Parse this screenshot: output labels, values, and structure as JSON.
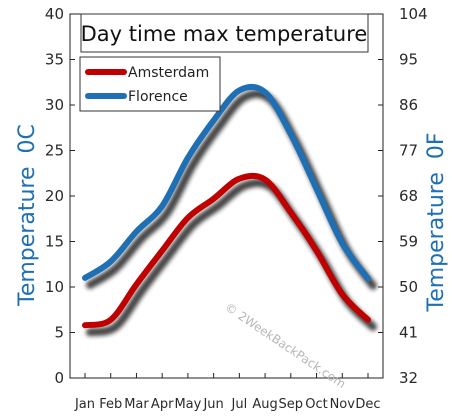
{
  "chart_data": {
    "type": "line",
    "title": "Day time max temperature",
    "categories": [
      "Jan",
      "Feb",
      "Mar",
      "Apr",
      "May",
      "Jun",
      "Jul",
      "Aug",
      "Sep",
      "Oct",
      "Nov",
      "Dec"
    ],
    "series": [
      {
        "name": "Amsterdam",
        "color": "#c00000",
        "values": [
          5.8,
          6.4,
          10.3,
          14.0,
          17.6,
          19.7,
          21.9,
          21.8,
          18.2,
          14.0,
          9.2,
          6.4
        ]
      },
      {
        "name": "Florence",
        "color": "#1f6fb5",
        "values": [
          11.0,
          12.8,
          16.1,
          18.9,
          24.2,
          28.3,
          31.6,
          31.4,
          26.8,
          20.8,
          14.8,
          10.9
        ]
      }
    ],
    "ylabel_left": "Temperature",
    "ylabel_left_unit": "0C",
    "ylabel_right": "Temperature",
    "ylabel_right_unit": "0F",
    "ylim_left": [
      0,
      40
    ],
    "ylim_right": [
      32,
      104
    ],
    "yticks_left": [
      "0",
      "5",
      "10",
      "15",
      "20",
      "25",
      "30",
      "35",
      "40"
    ],
    "yticks_right": [
      "32",
      "41",
      "50",
      "59",
      "68",
      "77",
      "86",
      "95",
      "104"
    ],
    "grid": false,
    "legend_position": "top-left",
    "watermark": "© 2WeekBackPack.com"
  }
}
